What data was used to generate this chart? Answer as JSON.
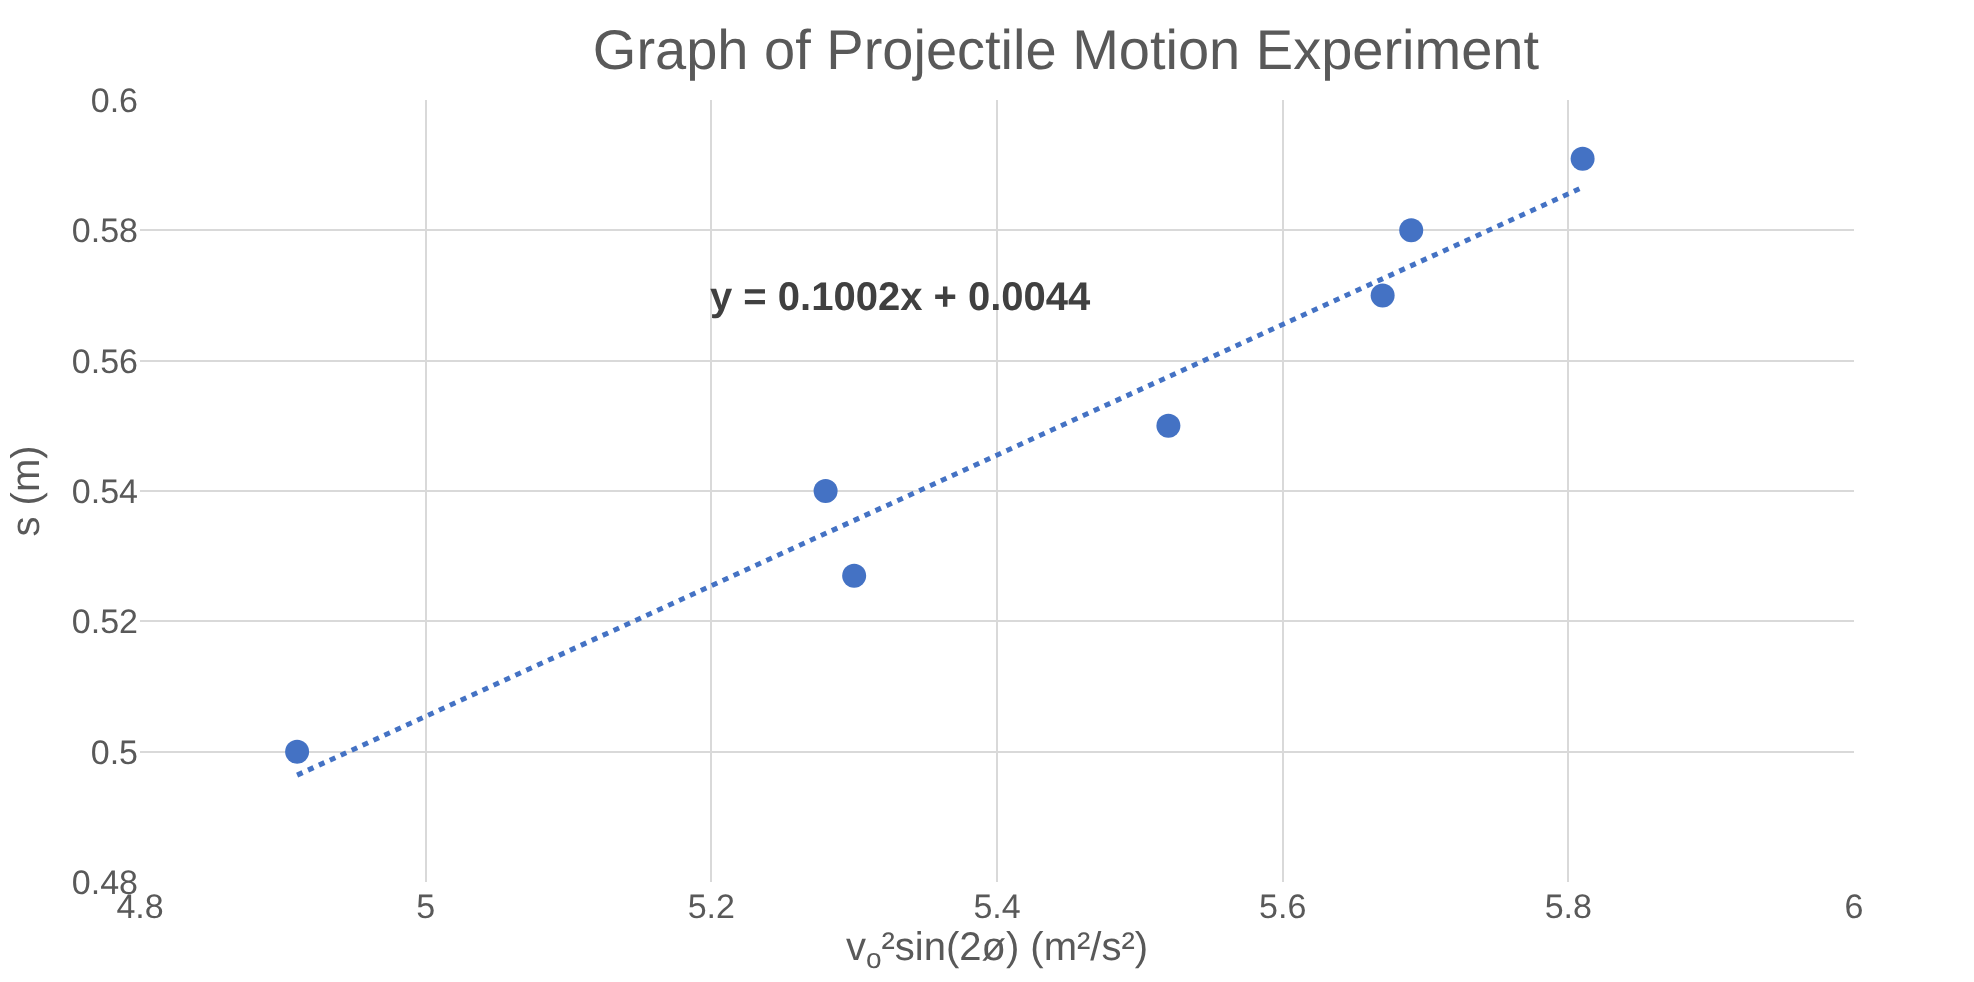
{
  "chart_data": {
    "type": "scatter",
    "title": "Graph of Projectile Motion Experiment",
    "xlabel": "v$_{o}$²sin(2ø) (m²/s²)",
    "ylabel": "s (m)",
    "series": [
      {
        "color": "#4472c4",
        "marker": "circle",
        "x": [
          4.91,
          5.28,
          5.3,
          5.52,
          5.67,
          5.69,
          5.81
        ],
        "values": [
          0.5,
          0.54,
          0.527,
          0.55,
          0.57,
          0.58,
          0.591
        ]
      },
      {
        "type": "line",
        "color": "#4472c4",
        "line_style": "dotted",
        "marker": "none",
        "x": [
          4.91,
          5.81
        ],
        "values": [
          0.4964,
          0.5866
        ]
      }
    ],
    "annotations": [
      "y = 0.1002x + 0.0044"
    ],
    "xlim": [
      4.8,
      6
    ],
    "xticks": [
      4.8,
      5,
      5.2,
      5.4,
      5.6,
      5.8,
      6
    ],
    "ylim": [
      0.48,
      0.6
    ],
    "yticks": [
      0.48,
      0.5,
      0.52,
      0.54,
      0.56,
      0.58,
      0.6
    ],
    "grid": true
  }
}
